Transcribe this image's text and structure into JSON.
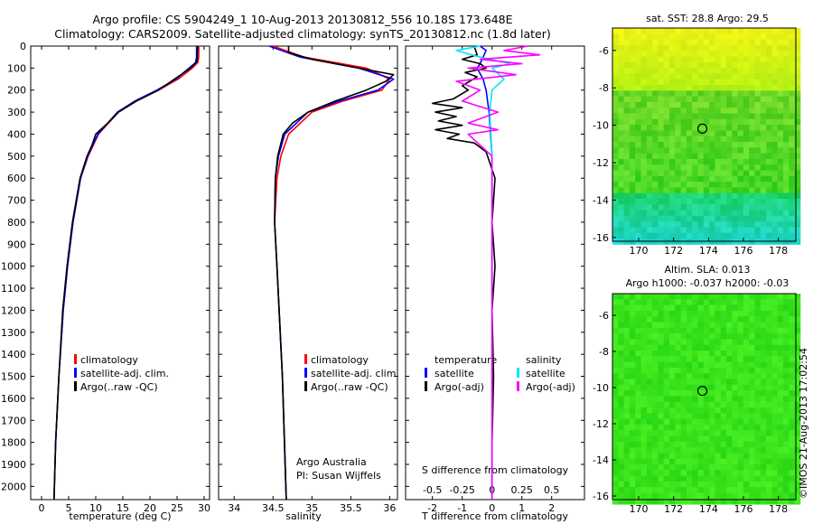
{
  "header": {
    "line1": "Argo profile: CS 5904249_1 10-Aug-2013 20130812_556 10.18S 173.648E",
    "line2": "Climatology: CARS2009. Satellite-adjusted climatology: synTS_20130812.nc (1.8d later)"
  },
  "colors": {
    "climatology": "#ff0000",
    "satellite": "#0000ff",
    "argo": "#000000",
    "salinity_satellite": "#00e5ff",
    "salinity_argo": "#ff00ff"
  },
  "chart_data": [
    {
      "id": "temperature",
      "type": "line",
      "xlabel": "temperature (deg C)",
      "ylabel": "",
      "xlim": [
        -2,
        31
      ],
      "ylim": [
        2060,
        0
      ],
      "xticks": [
        0,
        5,
        10,
        15,
        20,
        25,
        30
      ],
      "yticks": [
        0,
        100,
        200,
        300,
        400,
        500,
        600,
        700,
        800,
        900,
        1000,
        1100,
        1200,
        1300,
        1400,
        1500,
        1600,
        1700,
        1800,
        1900,
        2000
      ],
      "legend": [
        "climatology",
        "satellite-adj. clim.",
        "Argo(..raw -QC)"
      ],
      "legend_position": "lower-center",
      "series": [
        {
          "name": "climatology",
          "depth": [
            0,
            50,
            75,
            100,
            150,
            200,
            250,
            300,
            400,
            500,
            600,
            800,
            1000,
            1200,
            1500,
            1800,
            2060
          ],
          "values": [
            29.0,
            29.0,
            28.8,
            27.8,
            25.2,
            21.6,
            17.4,
            14.2,
            10.5,
            8.6,
            7.2,
            5.8,
            4.8,
            4.0,
            3.2,
            2.6,
            2.3
          ]
        },
        {
          "name": "satellite-adj. clim.",
          "depth": [
            0,
            50,
            75,
            100,
            150,
            200,
            250,
            300,
            400,
            500,
            600,
            800,
            1000,
            1200,
            1500,
            1800,
            2060
          ],
          "values": [
            28.6,
            28.6,
            28.4,
            27.2,
            24.8,
            21.3,
            17.2,
            14.0,
            10.4,
            8.5,
            7.2,
            5.8,
            4.8,
            4.0,
            3.2,
            2.6,
            2.3
          ]
        },
        {
          "name": "Argo(..raw -QC)",
          "depth": [
            0,
            70,
            100,
            150,
            200,
            250,
            300,
            350,
            400,
            450,
            500,
            600,
            800,
            1000,
            1200,
            1500,
            1800,
            2060
          ],
          "values": [
            28.8,
            28.7,
            27.5,
            24.5,
            21.6,
            17.5,
            14.2,
            12.2,
            10.0,
            9.3,
            8.4,
            7.1,
            5.7,
            4.7,
            3.9,
            3.2,
            2.6,
            2.3
          ]
        }
      ]
    },
    {
      "id": "salinity",
      "type": "line",
      "xlabel": "salinity",
      "ylabel": "",
      "xlim": [
        33.8,
        36.1
      ],
      "ylim": [
        2060,
        0
      ],
      "xticks": [
        34,
        34.5,
        35,
        35.5,
        36
      ],
      "legend": [
        "climatology",
        "satellite-adj. clim.",
        "Argo(..raw -QC)"
      ],
      "legend_position": "lower-center",
      "annotation": [
        "Argo Australia",
        "PI: Susan Wijffels"
      ],
      "series": [
        {
          "name": "climatology",
          "depth": [
            0,
            50,
            100,
            150,
            200,
            250,
            300,
            400,
            500,
            600,
            800,
            1000,
            1500,
            2060
          ],
          "values": [
            34.5,
            34.9,
            35.7,
            36.0,
            35.9,
            35.4,
            35.0,
            34.7,
            34.6,
            34.55,
            34.52,
            34.55,
            34.62,
            34.67
          ]
        },
        {
          "name": "satellite-adj. clim.",
          "depth": [
            0,
            50,
            100,
            150,
            200,
            250,
            300,
            400,
            500,
            600,
            800,
            1000,
            1500,
            2060
          ],
          "values": [
            34.45,
            34.85,
            35.6,
            36.05,
            35.85,
            35.35,
            34.95,
            34.65,
            34.57,
            34.53,
            34.52,
            34.55,
            34.62,
            34.67
          ]
        },
        {
          "name": "Argo(..raw -QC)",
          "depth": [
            0,
            30,
            60,
            100,
            130,
            160,
            200,
            250,
            300,
            350,
            400,
            500,
            600,
            800,
            1000,
            1500,
            2060
          ],
          "values": [
            34.7,
            34.7,
            35.0,
            35.6,
            36.05,
            35.95,
            35.7,
            35.3,
            34.95,
            34.75,
            34.63,
            34.56,
            34.53,
            34.52,
            34.55,
            34.62,
            34.67
          ]
        }
      ]
    },
    {
      "id": "differences",
      "type": "line",
      "xlabel": "T difference from climatology",
      "xlabel2": "S difference from climatology",
      "xlim": [
        -2.9,
        3.1
      ],
      "ylim": [
        2060,
        0
      ],
      "xticks": [
        -2,
        -1,
        0,
        1,
        2
      ],
      "xticks_top": [
        -0.5,
        -0.25,
        0,
        0.25,
        0.5
      ],
      "legend_temperature": [
        "temperature",
        "satellite",
        "Argo(-adj)"
      ],
      "legend_salinity": [
        "salinity",
        "satellite",
        "Argo(-adj)"
      ],
      "series": [
        {
          "name": "temperature satellite",
          "depth": [
            0,
            20,
            50,
            80,
            100,
            150,
            200,
            300,
            500,
            1000,
            1500,
            2060
          ],
          "values": [
            -0.4,
            -0.2,
            -0.3,
            -0.4,
            -0.5,
            -0.3,
            -0.2,
            -0.1,
            0.0,
            0.0,
            0.0,
            0.0
          ]
        },
        {
          "name": "temperature Argo(-adj)",
          "depth": [
            0,
            40,
            60,
            80,
            100,
            120,
            140,
            180,
            200,
            240,
            260,
            280,
            300,
            320,
            340,
            360,
            380,
            400,
            420,
            440,
            480,
            520,
            600,
            800,
            1000,
            1200,
            1500,
            1800,
            2060
          ],
          "values": [
            -0.6,
            -0.5,
            -1.0,
            -0.4,
            -0.2,
            -0.9,
            -0.5,
            -1.0,
            -0.8,
            -1.3,
            -2.0,
            -1.0,
            -1.9,
            -1.2,
            -1.8,
            -1.0,
            -1.9,
            -1.1,
            -1.5,
            -0.6,
            -0.2,
            -0.1,
            0.1,
            0.0,
            0.1,
            0.0,
            0.05,
            0.0,
            0.0
          ]
        },
        {
          "name": "salinity satellite",
          "depth": [
            0,
            20,
            50,
            80,
            100,
            150,
            200,
            300,
            500,
            1000,
            2060
          ],
          "values": [
            -0.1,
            -0.3,
            -0.1,
            0.15,
            0.0,
            0.1,
            0.0,
            -0.02,
            0.0,
            0.0,
            0.0
          ]
        },
        {
          "name": "salinity Argo(-adj)",
          "depth": [
            0,
            20,
            40,
            60,
            80,
            100,
            130,
            160,
            200,
            250,
            300,
            350,
            380,
            400,
            450,
            500,
            800,
            1500,
            2060
          ],
          "values": [
            0.3,
            0.1,
            0.4,
            -0.1,
            0.25,
            -0.2,
            0.2,
            -0.3,
            -0.1,
            -0.25,
            0.05,
            -0.2,
            0.05,
            -0.2,
            -0.1,
            0.0,
            0.0,
            0.0,
            0.0
          ]
        }
      ]
    },
    {
      "id": "sst_map",
      "type": "heatmap",
      "title": "sat. SST: 28.8  Argo: 29.5",
      "xlim": [
        168.5,
        179
      ],
      "ylim": [
        -16.2,
        -4.8
      ],
      "xticks": [
        170,
        172,
        174,
        176,
        178
      ],
      "yticks": [
        -6,
        -8,
        -10,
        -12,
        -14,
        -16
      ],
      "profile_location": {
        "lon": 173.648,
        "lat": -10.18
      }
    },
    {
      "id": "sla_map",
      "type": "heatmap",
      "title": "Altim. SLA: 0.013",
      "subtitle": "Argo h1000: -0.037  h2000: -0.03",
      "xlim": [
        168.5,
        179
      ],
      "ylim": [
        -16.2,
        -4.8
      ],
      "xticks": [
        170,
        172,
        174,
        176,
        178
      ],
      "yticks": [
        -6,
        -8,
        -10,
        -12,
        -14,
        -16
      ],
      "profile_location": {
        "lon": 173.648,
        "lat": -10.18
      }
    }
  ],
  "footer": {
    "stamp": "©IMOS 21-Aug-2013 17:02:54"
  }
}
